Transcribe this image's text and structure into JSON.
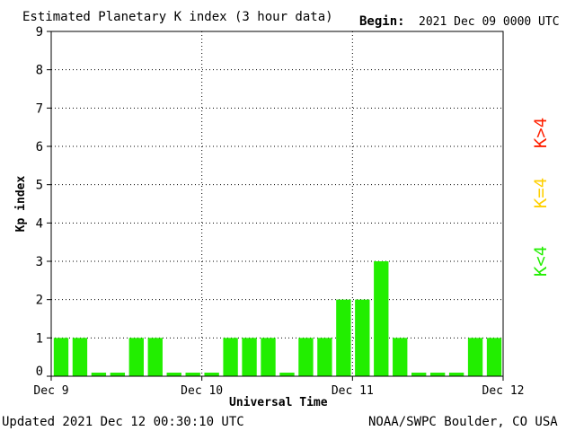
{
  "header": {
    "title": "Estimated Planetary K index (3 hour data)",
    "begin_label": "Begin:",
    "begin_value": "2021 Dec 09 0000 UTC"
  },
  "footer": {
    "updated": "Updated 2021 Dec 12 00:30:10 UTC",
    "credit": "NOAA/SWPC Boulder, CO USA"
  },
  "legend": [
    {
      "label": "K>4",
      "color": "#ff2000"
    },
    {
      "label": "K=4",
      "color": "#ffd000"
    },
    {
      "label": "K<4",
      "color": "#22ee00"
    }
  ],
  "chart_data": {
    "type": "bar",
    "title": "Estimated Planetary K index (3 hour data)",
    "xlabel": "Universal Time",
    "ylabel": "Kp index",
    "ylim": [
      0,
      9
    ],
    "yticks": [
      0,
      1,
      2,
      3,
      4,
      5,
      6,
      7,
      8,
      9
    ],
    "xticks": [
      "Dec 9",
      "Dec 10",
      "Dec 11",
      "Dec 12"
    ],
    "interval_hours": 3,
    "grid": "dotted",
    "bar_color": "#22ee00",
    "values": [
      1,
      1,
      0,
      0,
      1,
      1,
      0,
      0,
      0,
      1,
      1,
      1,
      0,
      1,
      1,
      2,
      2,
      3,
      1,
      0,
      0,
      0,
      1,
      1
    ]
  }
}
